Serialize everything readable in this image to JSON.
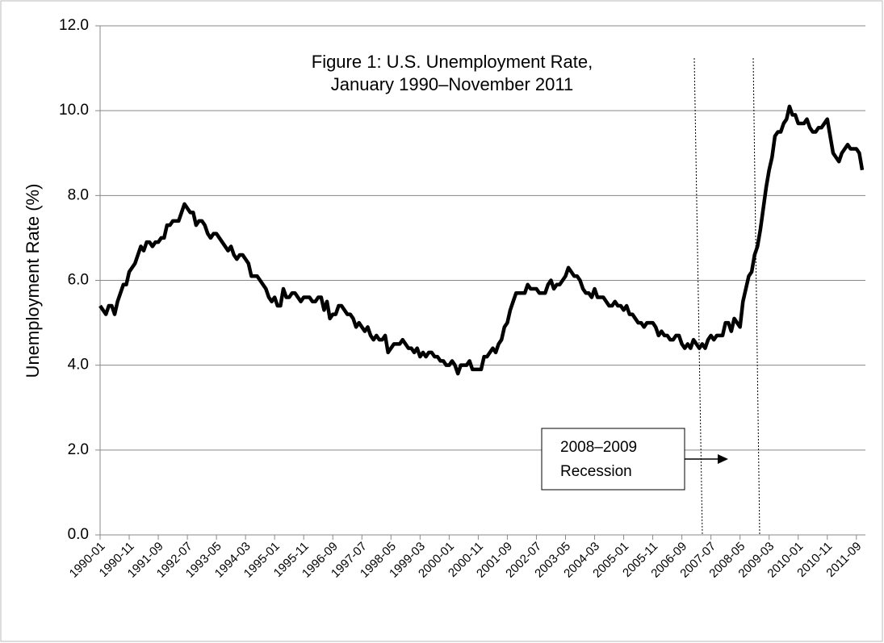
{
  "chart_data": {
    "type": "line",
    "title": [
      "Figure 1: U.S. Unemployment Rate,",
      "January 1990–November 2011"
    ],
    "y_label": "Unemployment Rate (%)",
    "annotation": [
      "2008–2009",
      "Recession"
    ],
    "color": "#000000",
    "grid": true,
    "ylim": [
      0,
      12
    ],
    "yticks": [
      {
        "value": 0,
        "label": "0.0"
      },
      {
        "value": 2,
        "label": "2.0"
      },
      {
        "value": 4,
        "label": "4.0"
      },
      {
        "value": 6,
        "label": "6.0"
      },
      {
        "value": 8,
        "label": "8.0"
      },
      {
        "value": 10,
        "label": "10.0"
      },
      {
        "value": 12,
        "label": "12.0"
      }
    ],
    "categories": [
      "1990-01",
      null,
      null,
      null,
      null,
      null,
      null,
      null,
      null,
      null,
      "1990-11",
      null,
      null,
      null,
      null,
      null,
      null,
      null,
      null,
      null,
      "1991-09",
      null,
      null,
      null,
      null,
      null,
      null,
      null,
      null,
      null,
      "1992-07",
      null,
      null,
      null,
      null,
      null,
      null,
      null,
      null,
      null,
      "1993-05",
      null,
      null,
      null,
      null,
      null,
      null,
      null,
      null,
      null,
      "1994-03",
      null,
      null,
      null,
      null,
      null,
      null,
      null,
      null,
      null,
      "1995-01",
      null,
      null,
      null,
      null,
      null,
      null,
      null,
      null,
      null,
      "1995-11",
      null,
      null,
      null,
      null,
      null,
      null,
      null,
      null,
      null,
      "1996-09",
      null,
      null,
      null,
      null,
      null,
      null,
      null,
      null,
      null,
      "1997-07",
      null,
      null,
      null,
      null,
      null,
      null,
      null,
      null,
      null,
      "1998-05",
      null,
      null,
      null,
      null,
      null,
      null,
      null,
      null,
      null,
      "1999-03",
      null,
      null,
      null,
      null,
      null,
      null,
      null,
      null,
      null,
      "2000-01",
      null,
      null,
      null,
      null,
      null,
      null,
      null,
      null,
      null,
      "2000-11",
      null,
      null,
      null,
      null,
      null,
      null,
      null,
      null,
      null,
      "2001-09",
      null,
      null,
      null,
      null,
      null,
      null,
      null,
      null,
      null,
      "2002-07",
      null,
      null,
      null,
      null,
      null,
      null,
      null,
      null,
      null,
      "2003-05",
      null,
      null,
      null,
      null,
      null,
      null,
      null,
      null,
      null,
      "2004-03",
      null,
      null,
      null,
      null,
      null,
      null,
      null,
      null,
      null,
      "2005-01",
      null,
      null,
      null,
      null,
      null,
      null,
      null,
      null,
      null,
      "2005-11",
      null,
      null,
      null,
      null,
      null,
      null,
      null,
      null,
      null,
      "2006-09",
      null,
      null,
      null,
      null,
      null,
      null,
      null,
      null,
      null,
      "2007-07",
      null,
      null,
      null,
      null,
      null,
      null,
      null,
      null,
      null,
      "2008-05",
      null,
      null,
      null,
      null,
      null,
      null,
      null,
      null,
      null,
      "2009-03",
      null,
      null,
      null,
      null,
      null,
      null,
      null,
      null,
      null,
      "2010-01",
      null,
      null,
      null,
      null,
      null,
      null,
      null,
      null,
      null,
      "2010-11",
      null,
      null,
      null,
      null,
      null,
      null,
      null,
      null,
      null,
      "2011-09",
      null,
      null
    ],
    "values": [
      5.4,
      5.3,
      5.2,
      5.4,
      5.4,
      5.2,
      5.5,
      5.7,
      5.9,
      5.9,
      6.2,
      6.3,
      6.4,
      6.6,
      6.8,
      6.7,
      6.9,
      6.9,
      6.8,
      6.9,
      6.9,
      7.0,
      7.0,
      7.3,
      7.3,
      7.4,
      7.4,
      7.4,
      7.6,
      7.8,
      7.7,
      7.6,
      7.6,
      7.3,
      7.4,
      7.4,
      7.3,
      7.1,
      7.0,
      7.1,
      7.1,
      7.0,
      6.9,
      6.8,
      6.7,
      6.8,
      6.6,
      6.5,
      6.6,
      6.6,
      6.5,
      6.4,
      6.1,
      6.1,
      6.1,
      6.0,
      5.9,
      5.8,
      5.6,
      5.5,
      5.6,
      5.4,
      5.4,
      5.8,
      5.6,
      5.6,
      5.7,
      5.7,
      5.6,
      5.5,
      5.6,
      5.6,
      5.6,
      5.5,
      5.5,
      5.6,
      5.6,
      5.3,
      5.5,
      5.1,
      5.2,
      5.2,
      5.4,
      5.4,
      5.3,
      5.2,
      5.2,
      5.1,
      4.9,
      5.0,
      4.9,
      4.8,
      4.9,
      4.7,
      4.6,
      4.7,
      4.6,
      4.6,
      4.7,
      4.3,
      4.4,
      4.5,
      4.5,
      4.5,
      4.6,
      4.5,
      4.4,
      4.4,
      4.3,
      4.4,
      4.2,
      4.3,
      4.2,
      4.3,
      4.3,
      4.2,
      4.2,
      4.1,
      4.1,
      4.0,
      4.0,
      4.1,
      4.0,
      3.8,
      4.0,
      4.0,
      4.0,
      4.1,
      3.9,
      3.9,
      3.9,
      3.9,
      4.2,
      4.2,
      4.3,
      4.4,
      4.3,
      4.5,
      4.6,
      4.9,
      5.0,
      5.3,
      5.5,
      5.7,
      5.7,
      5.7,
      5.7,
      5.9,
      5.8,
      5.8,
      5.8,
      5.7,
      5.7,
      5.7,
      5.9,
      6.0,
      5.8,
      5.9,
      5.9,
      6.0,
      6.1,
      6.3,
      6.2,
      6.1,
      6.1,
      6.0,
      5.8,
      5.7,
      5.7,
      5.6,
      5.8,
      5.6,
      5.6,
      5.6,
      5.5,
      5.4,
      5.4,
      5.5,
      5.4,
      5.4,
      5.3,
      5.4,
      5.2,
      5.2,
      5.1,
      5.0,
      5.0,
      4.9,
      5.0,
      5.0,
      5.0,
      4.9,
      4.7,
      4.8,
      4.7,
      4.7,
      4.6,
      4.6,
      4.7,
      4.7,
      4.5,
      4.4,
      4.5,
      4.4,
      4.6,
      4.5,
      4.4,
      4.5,
      4.4,
      4.6,
      4.7,
      4.6,
      4.7,
      4.7,
      4.7,
      5.0,
      5.0,
      4.8,
      5.1,
      5.0,
      4.9,
      5.5,
      5.8,
      6.1,
      6.2,
      6.6,
      6.8,
      7.2,
      7.7,
      8.2,
      8.6,
      8.9,
      9.4,
      9.5,
      9.5,
      9.7,
      9.8,
      10.1,
      9.9,
      9.9,
      9.7,
      9.7,
      9.7,
      9.8,
      9.6,
      9.5,
      9.5,
      9.6,
      9.6,
      9.7,
      9.8,
      9.4,
      9.0,
      8.9,
      8.8,
      9.0,
      9.1,
      9.2,
      9.1,
      9.1,
      9.1,
      9.0,
      8.6
    ]
  }
}
